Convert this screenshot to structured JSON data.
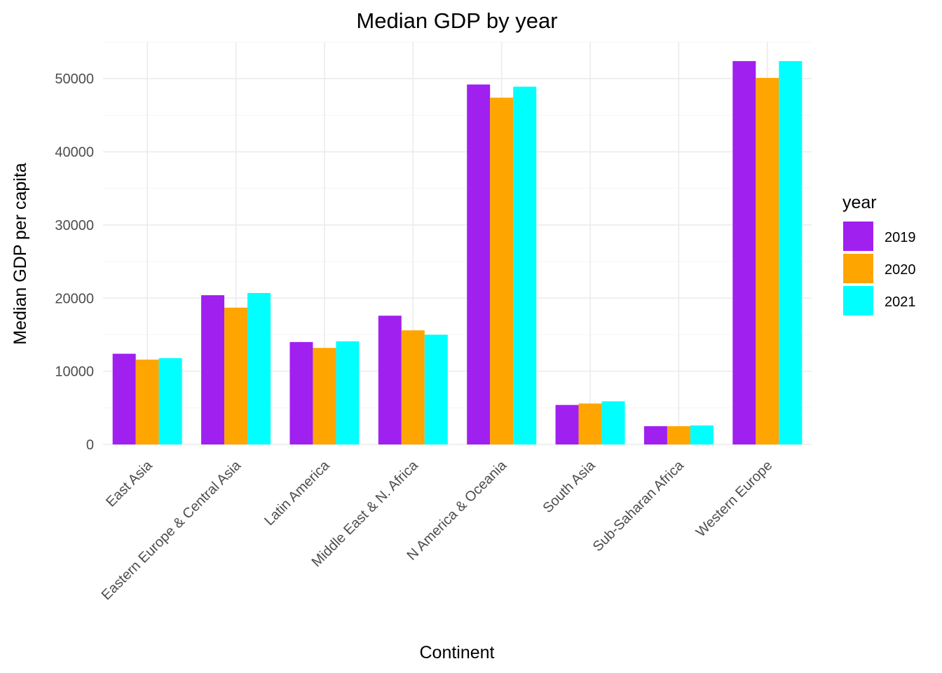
{
  "chart_data": {
    "type": "bar",
    "title": "Median GDP by year",
    "xlabel": "Continent",
    "ylabel": "Median GDP per capita",
    "ylim": [
      0,
      55000
    ],
    "yticks": [
      0,
      10000,
      20000,
      30000,
      40000,
      50000
    ],
    "grid": true,
    "legend": {
      "title": "year",
      "position": "right"
    },
    "categories": [
      "East Asia",
      "Eastern Europe & Central Asia",
      "Latin America",
      "Middle East & N. Africa",
      "N America & Oceania",
      "South Asia",
      "Sub-Saharan Africa",
      "Western Europe"
    ],
    "series": [
      {
        "name": "2019",
        "color": "#a020f0",
        "values": [
          12400,
          20400,
          14000,
          17600,
          49200,
          5400,
          2500,
          52400
        ]
      },
      {
        "name": "2020",
        "color": "#ffa500",
        "values": [
          11600,
          18700,
          13200,
          15600,
          47400,
          5600,
          2500,
          50100
        ]
      },
      {
        "name": "2021",
        "color": "#00ffff",
        "values": [
          11800,
          20700,
          14100,
          15000,
          48900,
          5900,
          2600,
          52400
        ]
      }
    ]
  }
}
